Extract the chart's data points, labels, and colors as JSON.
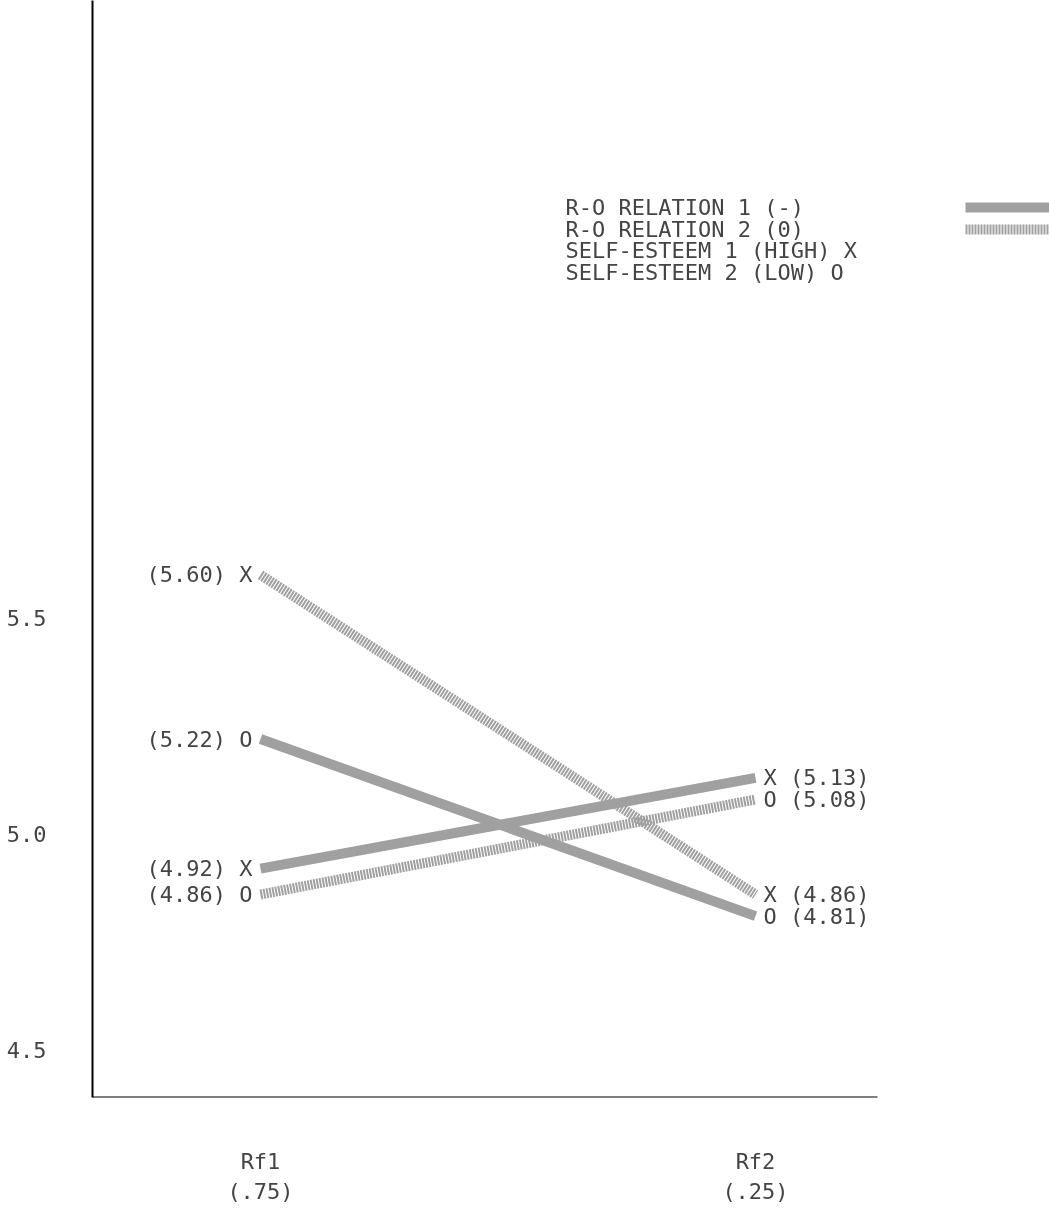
{
  "chart_data": {
    "type": "line",
    "categories": [
      "Rf1\n(.75)",
      "Rf2\n(.25)"
    ],
    "ylim": [
      4.39,
      6.93
    ],
    "yticks": [
      {
        "value": 4.5,
        "label": "4.5"
      },
      {
        "value": 5.0,
        "label": "5.0"
      },
      {
        "value": 5.5,
        "label": "5.5"
      }
    ],
    "grid": false,
    "marker": "none",
    "series": [
      {
        "color": "#a0a0a0",
        "line_style": "solid",
        "values": [
          4.92,
          5.13
        ],
        "value_labels": [
          "(4.92) X",
          "X (5.13)"
        ]
      },
      {
        "color": "#a0a0a0",
        "line_style": "solid",
        "values": [
          5.22,
          4.81
        ],
        "value_labels": [
          "(5.22) O",
          "O (4.81)"
        ]
      },
      {
        "color": "#a0a0a0",
        "line_style": "dotted",
        "values": [
          5.6,
          4.86
        ],
        "value_labels": [
          "(5.60) X",
          "X (4.86)"
        ]
      },
      {
        "color": "#a0a0a0",
        "line_style": "dotted",
        "values": [
          4.86,
          5.08
        ],
        "value_labels": [
          "(4.86) O",
          "O (5.08)"
        ]
      }
    ],
    "annotations": [
      "R-O RELATION 1 (-)",
      "R-O RELATION 2 (0)",
      "SELF-ESTEEM 1 (HIGH)  X",
      "SELF-ESTEEM 2 (LOW)   O"
    ]
  }
}
